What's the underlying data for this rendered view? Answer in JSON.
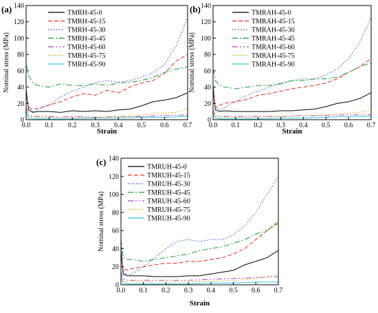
{
  "chart_data": [
    {
      "type": "line",
      "panel_label": "(a)",
      "xlabel": "Strain",
      "ylabel": "Nominal stress (MPa)",
      "xlim": [
        0.0,
        0.7
      ],
      "ylim": [
        0,
        140
      ],
      "xticks": [
        "0.0",
        "0.1",
        "0.2",
        "0.3",
        "0.4",
        "0.5",
        "0.6",
        "0.7"
      ],
      "yticks": [
        "0",
        "20",
        "40",
        "60",
        "80",
        "100",
        "120",
        "140"
      ],
      "legend_position": "top-left",
      "series": [
        {
          "name": "TMRH-45-0",
          "color": "#000000",
          "dash": "solid",
          "x": [
            0,
            0.01,
            0.03,
            0.05,
            0.1,
            0.15,
            0.2,
            0.25,
            0.3,
            0.35,
            0.4,
            0.45,
            0.5,
            0.55,
            0.6,
            0.65,
            0.7
          ],
          "y": [
            38,
            12,
            9,
            10,
            10,
            9,
            11,
            10,
            11,
            10,
            12,
            13,
            17,
            22,
            24,
            27,
            33
          ]
        },
        {
          "name": "TMRH-45-15",
          "color": "#e8281e",
          "dash": "6,3",
          "x": [
            0,
            0.01,
            0.03,
            0.05,
            0.1,
            0.15,
            0.2,
            0.25,
            0.3,
            0.35,
            0.4,
            0.45,
            0.5,
            0.55,
            0.6,
            0.65,
            0.7
          ],
          "y": [
            30,
            15,
            13,
            14,
            18,
            22,
            28,
            32,
            30,
            36,
            33,
            40,
            45,
            48,
            57,
            72,
            80
          ]
        },
        {
          "name": "TMRH-45-30",
          "color": "#1f3fd6",
          "dash": "1.5,2.5",
          "x": [
            0,
            0.01,
            0.03,
            0.05,
            0.1,
            0.15,
            0.2,
            0.25,
            0.3,
            0.35,
            0.4,
            0.45,
            0.5,
            0.55,
            0.6,
            0.65,
            0.7
          ],
          "y": [
            35,
            15,
            10,
            12,
            18,
            28,
            35,
            40,
            45,
            48,
            46,
            48,
            52,
            58,
            68,
            90,
            125
          ]
        },
        {
          "name": "TMRH-45-45",
          "color": "#1a9a32",
          "dash": "8,3,2,3",
          "x": [
            0,
            0.01,
            0.03,
            0.05,
            0.1,
            0.15,
            0.2,
            0.25,
            0.3,
            0.35,
            0.4,
            0.45,
            0.5,
            0.55,
            0.6,
            0.65,
            0.7
          ],
          "y": [
            68,
            55,
            45,
            42,
            40,
            44,
            42,
            42,
            44,
            42,
            45,
            46,
            48,
            52,
            58,
            62,
            65
          ]
        },
        {
          "name": "TMRH-45-60",
          "color": "#b040c8",
          "dash": "8,3,2,3,2,3",
          "x": [
            0,
            0.01,
            0.03,
            0.05,
            0.1,
            0.15,
            0.2,
            0.3,
            0.4,
            0.5,
            0.6,
            0.7
          ],
          "y": [
            15,
            5,
            4,
            4,
            4,
            3,
            4,
            3,
            4,
            4,
            5,
            6
          ]
        },
        {
          "name": "TMRH-45-75",
          "color": "#d8a000",
          "dash": "1.5,2",
          "x": [
            0,
            0.01,
            0.03,
            0.05,
            0.1,
            0.2,
            0.3,
            0.4,
            0.5,
            0.55,
            0.6,
            0.65,
            0.7
          ],
          "y": [
            12,
            4,
            3,
            3,
            3,
            3,
            3,
            4,
            5,
            8,
            8,
            9,
            14
          ]
        },
        {
          "name": "TMRH-45-90",
          "color": "#2ec8e0",
          "dash": "solid",
          "x": [
            0,
            0.01,
            0.03,
            0.05,
            0.1,
            0.2,
            0.3,
            0.4,
            0.5,
            0.6,
            0.7
          ],
          "y": [
            10,
            2,
            1,
            1,
            1,
            1,
            2,
            2,
            3,
            3,
            4
          ]
        }
      ]
    },
    {
      "type": "line",
      "panel_label": "(b)",
      "xlabel": "Strain",
      "ylabel": "Nominal stress (MPa)",
      "xlim": [
        0.0,
        0.7
      ],
      "ylim": [
        0,
        140
      ],
      "xticks": [
        "0.0",
        "0.1",
        "0.2",
        "0.3",
        "0.4",
        "0.5",
        "0.6",
        "0.7"
      ],
      "yticks": [
        "0",
        "20",
        "40",
        "60",
        "80",
        "100",
        "120",
        "140"
      ],
      "legend_position": "top-center",
      "series": [
        {
          "name": "TMRAH-45-0",
          "color": "#000000",
          "dash": "solid",
          "x": [
            0,
            0.01,
            0.03,
            0.05,
            0.1,
            0.15,
            0.2,
            0.25,
            0.3,
            0.35,
            0.4,
            0.45,
            0.5,
            0.55,
            0.6,
            0.65,
            0.7
          ],
          "y": [
            42,
            12,
            10,
            11,
            10,
            10,
            10,
            10,
            11,
            11,
            12,
            13,
            16,
            20,
            22,
            26,
            33
          ]
        },
        {
          "name": "TMRAH-45-15",
          "color": "#e8281e",
          "dash": "6,3",
          "x": [
            0,
            0.01,
            0.03,
            0.05,
            0.1,
            0.15,
            0.2,
            0.25,
            0.3,
            0.35,
            0.4,
            0.45,
            0.5,
            0.55,
            0.6,
            0.65,
            0.7
          ],
          "y": [
            32,
            15,
            18,
            20,
            22,
            25,
            30,
            32,
            35,
            38,
            40,
            42,
            45,
            50,
            58,
            65,
            75
          ]
        },
        {
          "name": "TMRAH-45-30",
          "color": "#1f3fd6",
          "dash": "1.5,2.5",
          "x": [
            0,
            0.01,
            0.03,
            0.05,
            0.1,
            0.15,
            0.2,
            0.25,
            0.3,
            0.35,
            0.4,
            0.45,
            0.5,
            0.55,
            0.6,
            0.65,
            0.7
          ],
          "y": [
            40,
            15,
            12,
            15,
            22,
            30,
            35,
            40,
            45,
            48,
            50,
            50,
            55,
            62,
            75,
            95,
            125
          ]
        },
        {
          "name": "TMRAH-45-45",
          "color": "#1a9a32",
          "dash": "8,3,2,3",
          "x": [
            0,
            0.01,
            0.03,
            0.05,
            0.1,
            0.15,
            0.2,
            0.25,
            0.3,
            0.35,
            0.4,
            0.45,
            0.5,
            0.55,
            0.6,
            0.65,
            0.7
          ],
          "y": [
            62,
            48,
            42,
            40,
            38,
            40,
            42,
            42,
            44,
            48,
            48,
            50,
            50,
            52,
            58,
            65,
            70
          ]
        },
        {
          "name": "TMRAH-45-60",
          "color": "#b040c8",
          "dash": "8,3,2,3,2,3",
          "x": [
            0,
            0.01,
            0.03,
            0.05,
            0.1,
            0.2,
            0.3,
            0.4,
            0.5,
            0.6,
            0.7
          ],
          "y": [
            12,
            5,
            4,
            4,
            4,
            4,
            4,
            5,
            5,
            6,
            6
          ]
        },
        {
          "name": "TMRAH-45-75",
          "color": "#d8a000",
          "dash": "1.5,2",
          "x": [
            0,
            0.01,
            0.03,
            0.05,
            0.1,
            0.2,
            0.3,
            0.4,
            0.5,
            0.55,
            0.6,
            0.65,
            0.7
          ],
          "y": [
            10,
            4,
            3,
            3,
            3,
            3,
            4,
            5,
            6,
            7,
            8,
            9,
            12
          ]
        },
        {
          "name": "TMRAH-45-90",
          "color": "#2ec8e0",
          "dash": "solid",
          "x": [
            0,
            0.01,
            0.03,
            0.05,
            0.1,
            0.2,
            0.3,
            0.4,
            0.5,
            0.6,
            0.7
          ],
          "y": [
            8,
            2,
            1,
            1,
            1,
            1,
            2,
            2,
            3,
            4,
            4
          ]
        }
      ]
    },
    {
      "type": "line",
      "panel_label": "(c)",
      "xlabel": "Strain",
      "ylabel": "Nominal stress (MPa)",
      "xlim": [
        0.0,
        0.7
      ],
      "ylim": [
        0,
        140
      ],
      "xticks": [
        "0.0",
        "0.1",
        "0.2",
        "0.3",
        "0.4",
        "0.5",
        "0.6",
        "0.7"
      ],
      "yticks": [
        "0",
        "20",
        "40",
        "60",
        "80",
        "100",
        "120",
        "140"
      ],
      "legend_position": "top-left",
      "series": [
        {
          "name": "TMRUH-45-0",
          "color": "#000000",
          "dash": "solid",
          "x": [
            0,
            0.01,
            0.03,
            0.05,
            0.1,
            0.15,
            0.2,
            0.25,
            0.3,
            0.35,
            0.4,
            0.45,
            0.5,
            0.55,
            0.6,
            0.65,
            0.7
          ],
          "y": [
            38,
            12,
            10,
            10,
            10,
            9,
            9,
            9,
            10,
            10,
            12,
            14,
            16,
            22,
            26,
            30,
            38
          ]
        },
        {
          "name": "TMRUH-45-15",
          "color": "#e8281e",
          "dash": "6,3",
          "x": [
            0,
            0.01,
            0.03,
            0.05,
            0.1,
            0.15,
            0.2,
            0.25,
            0.3,
            0.35,
            0.4,
            0.45,
            0.5,
            0.55,
            0.6,
            0.65,
            0.7
          ],
          "y": [
            30,
            18,
            16,
            18,
            20,
            22,
            24,
            24,
            26,
            26,
            28,
            30,
            34,
            40,
            50,
            60,
            70
          ]
        },
        {
          "name": "TMRUH-45-30",
          "color": "#1f3fd6",
          "dash": "1.5,2.5",
          "x": [
            0,
            0.01,
            0.03,
            0.05,
            0.1,
            0.15,
            0.2,
            0.25,
            0.3,
            0.35,
            0.4,
            0.45,
            0.5,
            0.55,
            0.6,
            0.65,
            0.7
          ],
          "y": [
            45,
            15,
            10,
            12,
            20,
            30,
            40,
            48,
            50,
            48,
            50,
            50,
            55,
            65,
            80,
            100,
            120
          ]
        },
        {
          "name": "TMRUH-45-45",
          "color": "#1a9a32",
          "dash": "8,3,2,3",
          "x": [
            0,
            0.01,
            0.03,
            0.05,
            0.1,
            0.15,
            0.2,
            0.25,
            0.3,
            0.35,
            0.4,
            0.45,
            0.5,
            0.55,
            0.6,
            0.65,
            0.7
          ],
          "y": [
            50,
            30,
            28,
            28,
            26,
            28,
            30,
            32,
            34,
            38,
            40,
            42,
            46,
            50,
            56,
            60,
            68
          ]
        },
        {
          "name": "TMRUH-45-60",
          "color": "#b040c8",
          "dash": "8,3,2,3,2,3",
          "x": [
            0,
            0.01,
            0.03,
            0.05,
            0.1,
            0.2,
            0.3,
            0.4,
            0.5,
            0.6,
            0.7
          ],
          "y": [
            14,
            6,
            5,
            5,
            5,
            5,
            5,
            6,
            7,
            8,
            9
          ]
        },
        {
          "name": "TMRUH-45-75",
          "color": "#d8a000",
          "dash": "1.5,2",
          "x": [
            0,
            0.01,
            0.03,
            0.05,
            0.1,
            0.2,
            0.3,
            0.4,
            0.5,
            0.55,
            0.6,
            0.65,
            0.7
          ],
          "y": [
            10,
            4,
            3,
            3,
            3,
            3,
            3,
            4,
            5,
            6,
            7,
            9,
            12
          ]
        },
        {
          "name": "TMRUH-45-90",
          "color": "#2ec8e0",
          "dash": "solid",
          "x": [
            0,
            0.01,
            0.03,
            0.05,
            0.1,
            0.2,
            0.3,
            0.4,
            0.5,
            0.6,
            0.7
          ],
          "y": [
            8,
            2,
            1,
            1,
            1,
            1,
            1,
            2,
            2,
            3,
            3
          ]
        }
      ]
    }
  ]
}
